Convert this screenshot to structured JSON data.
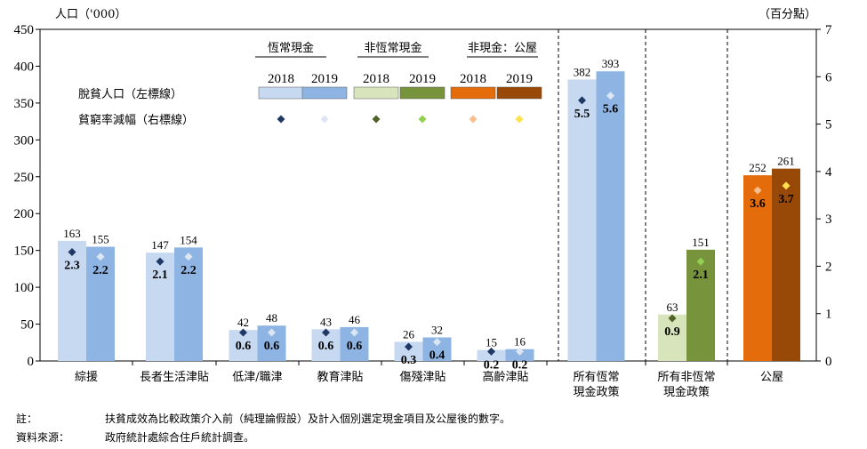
{
  "chart_data": {
    "type": "bar",
    "left_axis_title": "人口（'000）",
    "right_axis_title": "（百分點）",
    "left_axis": {
      "min": 0,
      "max": 450,
      "ticks": [
        "0",
        "50",
        "100",
        "150",
        "200",
        "250",
        "300",
        "350",
        "400",
        "450"
      ]
    },
    "right_axis": {
      "min": 0,
      "max": 7,
      "ticks": [
        "0",
        "1",
        "2",
        "3",
        "4",
        "5",
        "6",
        "7"
      ]
    },
    "legend": {
      "group_headers": [
        "恆常現金",
        "非恆常現金",
        "非現金：公屋"
      ],
      "years": [
        "2018",
        "2019",
        "2018",
        "2019",
        "2018",
        "2019"
      ],
      "row_bar_label": "脫貧人口（左標線）",
      "row_marker_label": "貧窮率減幅（右標線）"
    },
    "categories": [
      {
        "label": [
          "綜援"
        ],
        "group": 0,
        "pop": [
          163,
          155
        ],
        "pop_labels": [
          "163",
          "155"
        ],
        "rate": [
          2.3,
          2.2
        ],
        "rate_labels": [
          "2.3",
          "2.2"
        ]
      },
      {
        "label": [
          "長者生活津貼"
        ],
        "group": 0,
        "pop": [
          147,
          154
        ],
        "pop_labels": [
          "147",
          "154"
        ],
        "rate": [
          2.1,
          2.2
        ],
        "rate_labels": [
          "2.1",
          "2.2"
        ]
      },
      {
        "label": [
          "低津/職津"
        ],
        "group": 0,
        "pop": [
          42,
          48
        ],
        "pop_labels": [
          "42",
          "48"
        ],
        "rate": [
          0.6,
          0.6
        ],
        "rate_labels": [
          "0.6",
          "0.6"
        ]
      },
      {
        "label": [
          "教育津貼"
        ],
        "group": 0,
        "pop": [
          43,
          46
        ],
        "pop_labels": [
          "43",
          "46"
        ],
        "rate": [
          0.6,
          0.6
        ],
        "rate_labels": [
          "0.6",
          "0.6"
        ]
      },
      {
        "label": [
          "傷殘津貼"
        ],
        "group": 0,
        "pop": [
          26,
          32
        ],
        "pop_labels": [
          "26",
          "32"
        ],
        "rate": [
          0.3,
          0.4
        ],
        "rate_labels": [
          "0.3",
          "0.4"
        ]
      },
      {
        "label": [
          "高齡津貼"
        ],
        "group": 0,
        "pop": [
          15,
          16
        ],
        "pop_labels": [
          "15",
          "16"
        ],
        "rate": [
          0.2,
          0.2
        ],
        "rate_labels": [
          "0.2",
          "0.2"
        ]
      },
      {
        "label": [
          "所有恆常",
          "現金政策"
        ],
        "group": 0,
        "pop": [
          382,
          393
        ],
        "pop_labels": [
          "382",
          "393"
        ],
        "rate": [
          5.5,
          5.6
        ],
        "rate_labels": [
          "5.5",
          "5.6"
        ]
      },
      {
        "label": [
          "所有非恆常",
          "現金政策"
        ],
        "group": 1,
        "pop": [
          63,
          151
        ],
        "pop_labels": [
          "63",
          "151"
        ],
        "rate": [
          0.9,
          2.1
        ],
        "rate_labels": [
          "0.9",
          "2.1"
        ]
      },
      {
        "label": [
          "公屋"
        ],
        "group": 2,
        "pop": [
          252,
          261
        ],
        "pop_labels": [
          "252",
          "261"
        ],
        "rate": [
          3.6,
          3.7
        ],
        "rate_labels": [
          "3.6",
          "3.7"
        ]
      }
    ],
    "colors": {
      "bars": [
        [
          "#c6d9f1",
          "#8db4e2"
        ],
        [
          "#d8e4bc",
          "#77933c"
        ],
        [
          "#e46c0a",
          "#984807"
        ]
      ],
      "markers": [
        [
          "#1f3864",
          "#dce6f2"
        ],
        [
          "#4f6228",
          "#92d050"
        ],
        [
          "#fabf8f",
          "#ffe14c"
        ]
      ]
    }
  },
  "notes": {
    "note_label": "註：",
    "note_text": "扶貧成效為比較政策介入前（純理論假設）及計入個別選定現金項目及公屋後的數字。",
    "source_label": "資料來源：",
    "source_text": "政府統計處綜合住戶統計調查。"
  }
}
